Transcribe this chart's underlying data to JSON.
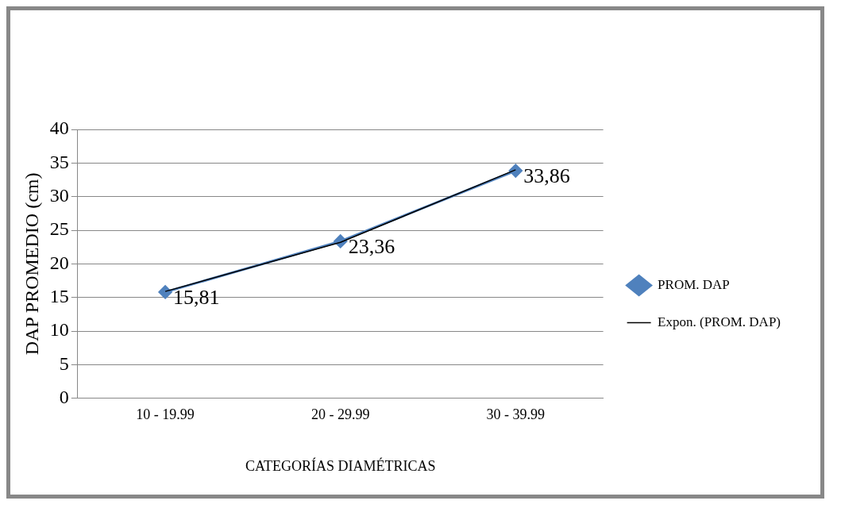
{
  "chart_data": {
    "type": "line",
    "xlabel": "CATEGORÍAS DIAMÉTRICAS",
    "ylabel": "DAP PROMEDIO (cm)",
    "categories": [
      "10 - 19.99",
      "20 - 29.99",
      "30 - 39.99"
    ],
    "series": [
      {
        "name": "PROM. DAP",
        "color": "#4f81bd",
        "values": [
          15.81,
          23.36,
          33.86
        ],
        "value_labels": [
          "15,81",
          "23,36",
          "33,86"
        ],
        "marker": "diamond"
      },
      {
        "name": "Expon. (PROM. DAP)",
        "color": "#000000",
        "type": "line",
        "values": [
          15.9,
          23.2,
          34.0
        ],
        "marker": "none"
      }
    ],
    "ylim": [
      0,
      40
    ],
    "yticks": [
      0,
      5,
      10,
      15,
      20,
      25,
      30,
      35,
      40
    ],
    "grid": "y",
    "legend": "right",
    "line_style": "solid"
  }
}
